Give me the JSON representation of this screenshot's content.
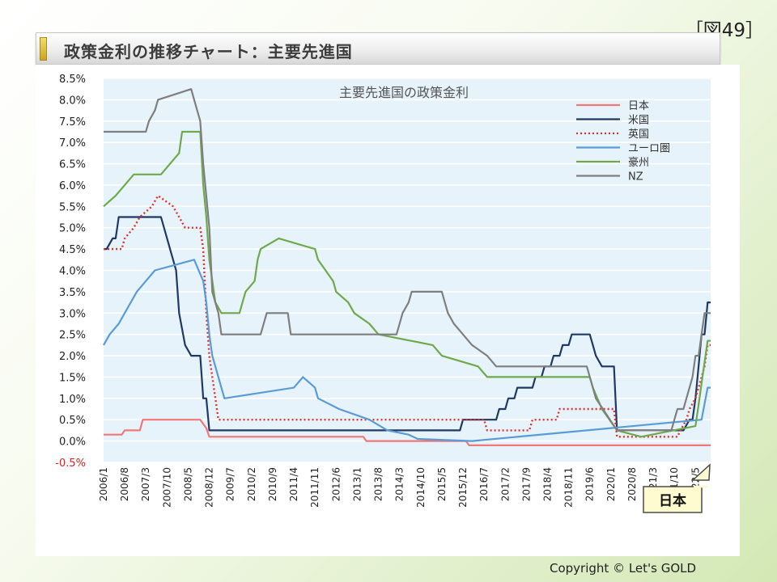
{
  "page": {
    "figure_label": "［図49］",
    "header_title": "政策金利の推移チャート：主要先進国",
    "copyright": "Copyright © Let's GOLD",
    "callout_label": "日本"
  },
  "chart_data": {
    "type": "line",
    "title": "主要先進国の政策金利",
    "xlabel": "",
    "ylabel": "",
    "ylim": [
      -0.5,
      8.5
    ],
    "yticks": [
      "8.5%",
      "8.0%",
      "7.5%",
      "7.0%",
      "6.5%",
      "6.0%",
      "5.5%",
      "5.0%",
      "4.5%",
      "4.0%",
      "3.5%",
      "3.0%",
      "2.5%",
      "2.0%",
      "1.5%",
      "1.0%",
      "0.5%",
      "0.0%",
      "-0.5%"
    ],
    "xlim": [
      "2006-01",
      "2022-10"
    ],
    "xticks": [
      "2006/1",
      "2006/8",
      "2007/3",
      "2007/10",
      "2008/5",
      "2008/12",
      "2009/7",
      "2010/2",
      "2010/9",
      "2011/4",
      "2011/11",
      "2012/6",
      "2013/1",
      "2013/8",
      "2014/3",
      "2014/10",
      "2015/5",
      "2015/12",
      "2016/7",
      "2017/2",
      "2017/9",
      "2018/4",
      "2018/11",
      "2019/6",
      "2020/1",
      "2020/8",
      "2021/3",
      "2021/10",
      "2022/5"
    ],
    "grid": "horizontal",
    "legend": "top-right",
    "series": [
      {
        "name": "日本",
        "color": "#f07878",
        "dash": "solid",
        "x": [
          "2006-01",
          "2006-07",
          "2006-08",
          "2007-01",
          "2007-02",
          "2008-09",
          "2008-11",
          "2008-12",
          "2013-03",
          "2013-04",
          "2016-01",
          "2016-02",
          "2022-10"
        ],
        "y": [
          0.15,
          0.15,
          0.25,
          0.25,
          0.5,
          0.5,
          0.3,
          0.1,
          0.1,
          0.0,
          0.0,
          -0.1,
          -0.1
        ]
      },
      {
        "name": "米国",
        "color": "#1f3864",
        "dash": "solid",
        "x": [
          "2006-01",
          "2006-02",
          "2006-04",
          "2006-05",
          "2006-06",
          "2007-08",
          "2007-10",
          "2007-11",
          "2008-01",
          "2008-02",
          "2008-04",
          "2008-06",
          "2008-09",
          "2008-10",
          "2008-11",
          "2008-12",
          "2015-11",
          "2015-12",
          "2016-11",
          "2016-12",
          "2017-02",
          "2017-03",
          "2017-05",
          "2017-06",
          "2017-11",
          "2017-12",
          "2018-02",
          "2018-03",
          "2018-05",
          "2018-06",
          "2018-08",
          "2018-09",
          "2018-11",
          "2018-12",
          "2019-06",
          "2019-07",
          "2019-08",
          "2019-10",
          "2020-02",
          "2020-03",
          "2021-12",
          "2022-01",
          "2022-03",
          "2022-04",
          "2022-05",
          "2022-06",
          "2022-07",
          "2022-08",
          "2022-09",
          "2022-10"
        ],
        "y": [
          4.5,
          4.5,
          4.75,
          4.75,
          5.25,
          5.25,
          4.75,
          4.5,
          4.0,
          3.0,
          2.25,
          2.0,
          2.0,
          1.0,
          1.0,
          0.25,
          0.25,
          0.5,
          0.5,
          0.75,
          0.75,
          1.0,
          1.0,
          1.25,
          1.25,
          1.5,
          1.5,
          1.75,
          1.75,
          2.0,
          2.0,
          2.25,
          2.25,
          2.5,
          2.5,
          2.25,
          2.0,
          1.75,
          1.75,
          0.25,
          0.25,
          0.25,
          0.5,
          0.5,
          1.0,
          1.75,
          2.5,
          2.5,
          3.25,
          3.25
        ]
      },
      {
        "name": "英国",
        "color": "#e03030",
        "dash": "dotted",
        "x": [
          "2006-01",
          "2006-07",
          "2006-08",
          "2006-11",
          "2007-01",
          "2007-05",
          "2007-07",
          "2007-12",
          "2008-02",
          "2008-04",
          "2008-09",
          "2008-10",
          "2008-11",
          "2008-12",
          "2009-01",
          "2009-02",
          "2009-03",
          "2016-07",
          "2016-08",
          "2017-10",
          "2017-11",
          "2018-07",
          "2018-08",
          "2020-02",
          "2020-03",
          "2021-11",
          "2021-12",
          "2022-02",
          "2022-03",
          "2022-05",
          "2022-06",
          "2022-08",
          "2022-09",
          "2022-10"
        ],
        "y": [
          4.5,
          4.5,
          4.75,
          5.0,
          5.25,
          5.5,
          5.75,
          5.5,
          5.25,
          5.0,
          5.0,
          4.5,
          3.0,
          2.0,
          1.5,
          1.0,
          0.5,
          0.5,
          0.25,
          0.25,
          0.5,
          0.5,
          0.75,
          0.75,
          0.1,
          0.1,
          0.25,
          0.5,
          0.75,
          1.0,
          1.25,
          1.75,
          2.25,
          2.25
        ]
      },
      {
        "name": "ユーロ圏",
        "color": "#5b9bd5",
        "dash": "solid",
        "x": [
          "2006-01",
          "2006-03",
          "2006-06",
          "2006-08",
          "2006-10",
          "2006-12",
          "2007-03",
          "2007-06",
          "2008-07",
          "2008-10",
          "2008-11",
          "2008-12",
          "2009-01",
          "2009-03",
          "2009-04",
          "2009-05",
          "2011-04",
          "2011-07",
          "2011-11",
          "2011-12",
          "2012-07",
          "2013-05",
          "2013-11",
          "2014-06",
          "2014-09",
          "2016-03",
          "2022-07",
          "2022-09",
          "2022-10"
        ],
        "y": [
          2.25,
          2.5,
          2.75,
          3.0,
          3.25,
          3.5,
          3.75,
          4.0,
          4.25,
          3.75,
          3.25,
          2.5,
          2.0,
          1.5,
          1.25,
          1.0,
          1.25,
          1.5,
          1.25,
          1.0,
          0.75,
          0.5,
          0.25,
          0.15,
          0.05,
          0.0,
          0.5,
          1.25,
          1.25
        ]
      },
      {
        "name": "豪州",
        "color": "#70a84c",
        "dash": "solid",
        "x": [
          "2006-01",
          "2006-05",
          "2006-08",
          "2006-11",
          "2007-08",
          "2007-11",
          "2008-02",
          "2008-03",
          "2008-09",
          "2008-10",
          "2008-11",
          "2008-12",
          "2009-02",
          "2009-04",
          "2009-10",
          "2009-11",
          "2009-12",
          "2010-03",
          "2010-04",
          "2010-05",
          "2010-11",
          "2011-11",
          "2011-12",
          "2012-05",
          "2012-06",
          "2012-10",
          "2012-12",
          "2013-05",
          "2013-08",
          "2015-02",
          "2015-05",
          "2016-05",
          "2016-08",
          "2019-06",
          "2019-07",
          "2019-10",
          "2020-03",
          "2020-11",
          "2022-05",
          "2022-06",
          "2022-07",
          "2022-08",
          "2022-09",
          "2022-10"
        ],
        "y": [
          5.5,
          5.75,
          6.0,
          6.25,
          6.25,
          6.5,
          6.75,
          7.25,
          7.25,
          6.0,
          5.25,
          4.25,
          3.25,
          3.0,
          3.0,
          3.25,
          3.5,
          3.75,
          4.25,
          4.5,
          4.75,
          4.5,
          4.25,
          3.75,
          3.5,
          3.25,
          3.0,
          2.75,
          2.5,
          2.25,
          2.0,
          1.75,
          1.5,
          1.5,
          1.25,
          0.75,
          0.25,
          0.1,
          0.35,
          0.85,
          1.35,
          1.85,
          2.35,
          2.35
        ]
      },
      {
        "name": "NZ",
        "color": "#7f7f7f",
        "dash": "solid",
        "x": [
          "2006-01",
          "2007-03",
          "2007-04",
          "2007-06",
          "2007-07",
          "2008-06",
          "2008-07",
          "2008-09",
          "2008-10",
          "2008-12",
          "2009-01",
          "2009-03",
          "2009-04",
          "2010-05",
          "2010-06",
          "2010-07",
          "2011-02",
          "2011-03",
          "2014-02",
          "2014-03",
          "2014-04",
          "2014-06",
          "2014-07",
          "2015-05",
          "2015-06",
          "2015-07",
          "2015-09",
          "2015-12",
          "2016-03",
          "2016-08",
          "2016-11",
          "2019-05",
          "2019-08",
          "2020-03",
          "2021-09",
          "2021-10",
          "2021-11",
          "2022-01",
          "2022-02",
          "2022-03",
          "2022-04",
          "2022-05",
          "2022-06",
          "2022-07",
          "2022-08",
          "2022-09",
          "2022-10"
        ],
        "y": [
          7.25,
          7.25,
          7.5,
          7.75,
          8.0,
          8.25,
          8.0,
          7.5,
          6.5,
          5.0,
          3.5,
          3.0,
          2.5,
          2.5,
          2.75,
          3.0,
          3.0,
          2.5,
          2.5,
          2.75,
          3.0,
          3.25,
          3.5,
          3.5,
          3.25,
          3.0,
          2.75,
          2.5,
          2.25,
          2.0,
          1.75,
          1.75,
          1.0,
          0.25,
          0.25,
          0.5,
          0.75,
          0.75,
          1.0,
          1.25,
          1.5,
          2.0,
          2.0,
          2.5,
          3.0,
          3.0,
          3.0
        ]
      }
    ]
  }
}
